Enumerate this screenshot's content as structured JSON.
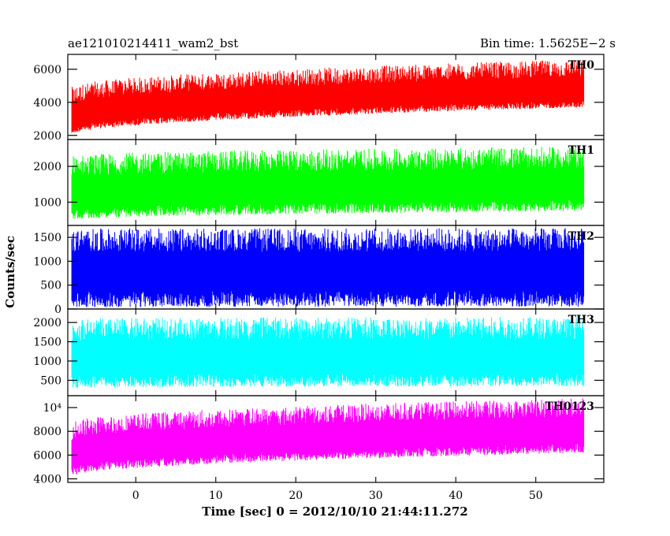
{
  "header": {
    "title": "ae121010214411_wam2_bst",
    "bin_time": "Bin time: 1.5625E−2 s"
  },
  "chart_data": {
    "type": "line",
    "title": "ae121010214411_wam2_bst",
    "subtitle": "Bin time: 1.5625E−2 s",
    "xlabel": "Time [sec] 0 = 2012/10/10 21:44:11.272",
    "ylabel": "Counts/sec",
    "xlim": [
      -8.5,
      58.5
    ],
    "data_x_range": [
      -8,
      56
    ],
    "x_ticks": [
      0,
      10,
      20,
      30,
      40,
      50
    ],
    "x_tick_labels": [
      "0",
      "10",
      "20",
      "30",
      "40",
      "50"
    ],
    "grid": false,
    "panels": [
      {
        "name": "TH0",
        "color": "#ff0000",
        "ylim": [
          1750,
          6900
        ],
        "y_ticks": [
          2000,
          4000,
          6000
        ],
        "y_tick_labels": [
          "2000",
          "4000",
          "6000"
        ],
        "trend_start": 3000,
        "trend_end": 4700,
        "spread_low": 1000,
        "spread_high": 1900
      },
      {
        "name": "TH1",
        "color": "#00ff00",
        "ylim": [
          350,
          2750
        ],
        "y_ticks": [
          1000,
          2000
        ],
        "y_tick_labels": [
          "1000",
          "2000"
        ],
        "trend_start": 1200,
        "trend_end": 1450,
        "spread_low": 700,
        "spread_high": 1100
      },
      {
        "name": "TH2",
        "color": "#0000ff",
        "ylim": [
          0,
          1750
        ],
        "y_ticks": [
          0,
          500,
          1000,
          1500
        ],
        "y_tick_labels": [
          "0",
          "500",
          "1000",
          "1500"
        ],
        "trend_start": 780,
        "trend_end": 800,
        "spread_low": 750,
        "spread_high": 900
      },
      {
        "name": "TH3",
        "color": "#00ffff",
        "ylim": [
          100,
          2350
        ],
        "y_ticks": [
          500,
          1000,
          1500,
          2000
        ],
        "y_tick_labels": [
          "500",
          "1000",
          "1500",
          "2000"
        ],
        "trend_start": 1050,
        "trend_end": 1100,
        "spread_low": 750,
        "spread_high": 1050
      },
      {
        "name": "TH0123",
        "color": "#ff00ff",
        "ylim": [
          3700,
          11000
        ],
        "y_ticks": [
          4000,
          6000,
          8000,
          10000
        ],
        "y_tick_labels": [
          "4000",
          "6000",
          "8000",
          "10⁴"
        ],
        "trend_start": 6000,
        "trend_end": 8000,
        "spread_low": 1800,
        "spread_high": 2800
      }
    ]
  }
}
